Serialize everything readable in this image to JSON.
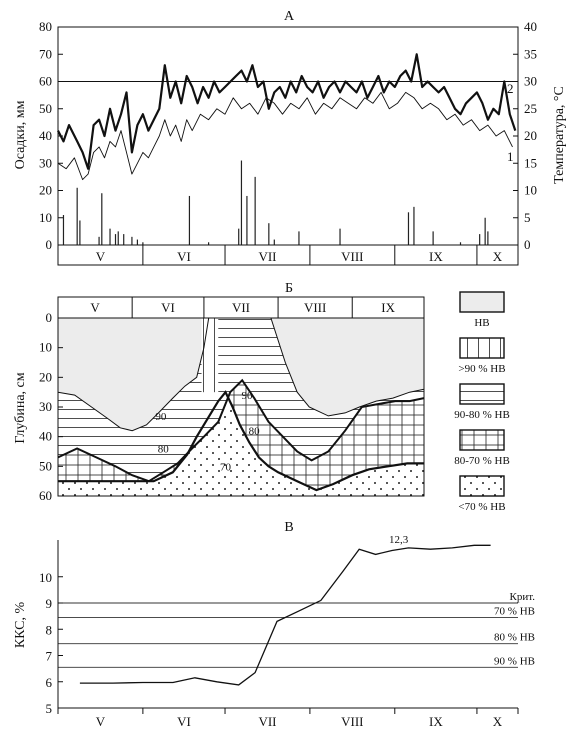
{
  "chart_data": [
    {
      "panel_label": "А",
      "type": "line+bar",
      "ylabel_left": "Осадки, мм",
      "ylabel_right": "Температура, °C",
      "ylim_left": [
        0,
        80
      ],
      "ylim_right": [
        0,
        40
      ],
      "yticks_left": [
        "0",
        "10",
        "20",
        "30",
        "40",
        "50",
        "60",
        "70",
        "80"
      ],
      "yticks_right": [
        "0",
        "5",
        "10",
        "15",
        "20",
        "25",
        "30",
        "35",
        "40"
      ],
      "months": [
        "V",
        "VI",
        "VII",
        "VIII",
        "IX",
        "X"
      ],
      "day_range": [
        0,
        168
      ],
      "month_boundaries": [
        0,
        31,
        61,
        92,
        123,
        153,
        168
      ],
      "reference_line_right": 30,
      "series": [
        {
          "name": "2",
          "axis": "right",
          "style": "thick",
          "x": [
            0,
            2,
            4,
            7,
            9,
            11,
            13,
            15,
            17,
            19,
            21,
            23,
            25,
            27,
            29,
            31,
            33,
            35,
            37,
            39,
            41,
            43,
            45,
            47,
            49,
            51,
            53,
            55,
            57,
            59,
            61,
            63,
            65,
            67,
            69,
            71,
            73,
            75,
            77,
            79,
            81,
            83,
            85,
            87,
            89,
            91,
            93,
            95,
            97,
            99,
            101,
            103,
            105,
            107,
            109,
            111,
            113,
            115,
            117,
            119,
            121,
            123,
            125,
            127,
            129,
            131,
            133,
            135,
            137,
            139,
            141,
            143,
            145,
            147,
            149,
            151,
            153,
            155,
            157,
            159,
            161,
            163,
            165,
            167
          ],
          "y": [
            21,
            19,
            22,
            19,
            17,
            14,
            22,
            23,
            20,
            25,
            21,
            24,
            28,
            17,
            22,
            24,
            21,
            23,
            25,
            33,
            27,
            30,
            26,
            31,
            29,
            26,
            29,
            27,
            30,
            28,
            29,
            30,
            31,
            32,
            30,
            33,
            29,
            30,
            25,
            28,
            29,
            27,
            30,
            28,
            31,
            29,
            28,
            30,
            27,
            29,
            30,
            28,
            30,
            29,
            28,
            30,
            27,
            29,
            31,
            28,
            30,
            29,
            31,
            32,
            30,
            35,
            29,
            30,
            29,
            28,
            29,
            27,
            25,
            24,
            26,
            27,
            28,
            26,
            23,
            25,
            24,
            30,
            24,
            21
          ]
        },
        {
          "name": "1",
          "axis": "right",
          "style": "thin",
          "x": [
            0,
            3,
            6,
            9,
            11,
            13,
            15,
            17,
            19,
            21,
            23,
            25,
            27,
            29,
            31,
            33,
            35,
            37,
            39,
            41,
            43,
            45,
            47,
            49,
            52,
            55,
            58,
            61,
            64,
            67,
            70,
            73,
            76,
            79,
            82,
            85,
            88,
            91,
            94,
            97,
            100,
            103,
            106,
            109,
            112,
            115,
            118,
            121,
            124,
            127,
            130,
            133,
            136,
            139,
            142,
            145,
            148,
            151,
            154,
            157,
            160,
            163,
            166
          ],
          "y": [
            15,
            14,
            16,
            12,
            13,
            17,
            18,
            16,
            19,
            18,
            21,
            17,
            13,
            15,
            17,
            16,
            18,
            20,
            23,
            20,
            22,
            19,
            23,
            21,
            24,
            23,
            25,
            24,
            27,
            25,
            26,
            24,
            27,
            26,
            24,
            26,
            25,
            27,
            24,
            26,
            25,
            27,
            26,
            25,
            27,
            26,
            28,
            25,
            26,
            28,
            27,
            25,
            26,
            25,
            23,
            24,
            22,
            23,
            21,
            22,
            20,
            21,
            18
          ]
        },
        {
          "name": "осадки",
          "axis": "left",
          "style": "bars",
          "x": [
            2,
            7,
            8,
            15,
            16,
            19,
            21,
            22,
            24,
            27,
            29,
            31,
            48,
            55,
            66,
            67,
            69,
            72,
            77,
            79,
            88,
            103,
            128,
            130,
            137,
            147,
            154,
            156,
            157
          ],
          "y": [
            11,
            21,
            9,
            3,
            19,
            6,
            4,
            5,
            4,
            3,
            2,
            1,
            18,
            1,
            6,
            31,
            18,
            25,
            8,
            2,
            5,
            6,
            12,
            14,
            5,
            1,
            4,
            10,
            5
          ]
        }
      ]
    },
    {
      "panel_label": "Б",
      "type": "area",
      "ylabel": "Глубина, см",
      "yticks": [
        "0",
        "10",
        "20",
        "30",
        "40",
        "50",
        "60"
      ],
      "ylim": [
        0,
        60
      ],
      "months": [
        "V",
        "VI",
        "VII",
        "VIII",
        "IX"
      ],
      "day_range": [
        0,
        153
      ],
      "month_boundaries": [
        0,
        31,
        61,
        92,
        123,
        153
      ],
      "isoline_labels": [
        "90",
        "80",
        "70",
        "90",
        "80"
      ],
      "legend": [
        "НВ",
        ">90 % НВ",
        "90-80 % НВ",
        "80-70 % НВ",
        "<70 % НВ"
      ],
      "boundaries": {
        "nv": {
          "x": [
            0,
            7,
            14,
            21,
            26,
            31,
            37,
            42,
            48,
            53,
            58,
            61,
            63,
            64,
            68,
            71,
            74,
            79,
            84,
            89,
            95,
            100,
            105,
            113,
            120,
            126,
            133,
            140,
            147,
            153
          ],
          "y": [
            25,
            26,
            30,
            34,
            37,
            38,
            36,
            32,
            27,
            23,
            20,
            10,
            0,
            0,
            0,
            0,
            0,
            0,
            0,
            0,
            15,
            25,
            30,
            33,
            32,
            30,
            28,
            27,
            25,
            24
          ]
        },
        "p90": {
          "x": [
            0,
            8,
            16,
            24,
            31,
            38,
            44,
            50,
            56,
            61,
            67,
            72,
            77,
            82,
            88,
            94,
            100,
            106,
            113,
            120,
            127,
            134,
            141,
            147,
            153
          ],
          "y": [
            47,
            44,
            47,
            50,
            53,
            55,
            52,
            49,
            44,
            40,
            35,
            25,
            21,
            27,
            35,
            40,
            45,
            48,
            45,
            38,
            30,
            29,
            28,
            28,
            27
          ]
        },
        "p80": {
          "x": [
            0,
            10,
            20,
            31,
            40,
            48,
            54,
            58,
            61,
            64,
            67,
            70,
            73,
            76,
            80,
            84,
            88,
            92,
            100,
            108,
            115,
            123,
            130,
            138,
            146,
            153
          ],
          "y": [
            55,
            55,
            55,
            55,
            55,
            52,
            46,
            40,
            36,
            32,
            28,
            25,
            30,
            36,
            42,
            47,
            50,
            52,
            55,
            58,
            56,
            53,
            51,
            50,
            49,
            49
          ]
        }
      }
    },
    {
      "panel_label": "В",
      "type": "line",
      "ylabel": "ККС, %",
      "yticks": [
        "5",
        "6",
        "7",
        "8",
        "9",
        "10"
      ],
      "ylim": [
        5,
        11.4
      ],
      "months": [
        "V",
        "VI",
        "VII",
        "VIII",
        "IX",
        "X"
      ],
      "day_range": [
        0,
        168
      ],
      "month_boundaries": [
        0,
        31,
        61,
        92,
        123,
        153,
        168
      ],
      "thresholds": [
        {
          "label": "Крит.",
          "value": 9.0
        },
        {
          "label": "70 % НВ",
          "value": 8.45
        },
        {
          "label": "80 % НВ",
          "value": 7.45
        },
        {
          "label": "90 % НВ",
          "value": 6.55
        }
      ],
      "peak_label": "12,3",
      "series": [
        {
          "name": "ККС",
          "x": [
            8,
            20,
            31,
            42,
            50,
            58,
            66,
            72,
            80,
            88,
            96,
            104,
            110,
            116,
            122,
            128,
            136,
            144,
            152,
            158
          ],
          "y": [
            5.95,
            5.95,
            5.97,
            5.97,
            6.15,
            6.0,
            5.88,
            6.35,
            8.3,
            8.7,
            9.1,
            10.2,
            11.05,
            10.85,
            11.0,
            11.1,
            11.05,
            11.1,
            11.2,
            11.2
          ]
        }
      ]
    }
  ]
}
